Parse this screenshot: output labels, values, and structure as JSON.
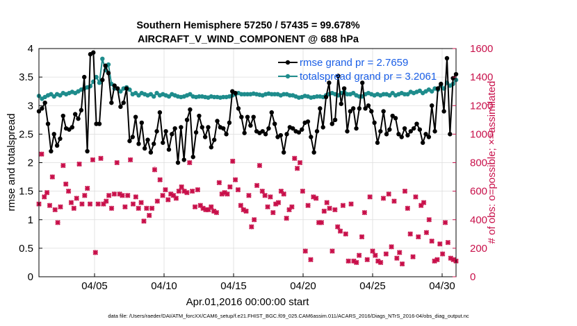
{
  "chart_data": {
    "type": "line",
    "title": "Southern Hemisphere 57250 / 57435 = 99.678%",
    "subtitle": "AIRCRAFT_V_WIND_COMPONENT @ 688 hPa",
    "xlabel": "Apr.01,2016 00:00:00 start",
    "ylabel": "rmse and totalspread",
    "ylabel_right": "# of obs: o=possible; ×=assimilated",
    "footer": "data file: /Users/raeder/DAI/ATM_forcXX/CAM6_setup/f.e21.FHIST_BGC.f09_025.CAM6assim.011/ACARS_2016/Diags_NTrS_2016-04/obs_diag_output.nc",
    "xlim": [
      1.0,
      31.0
    ],
    "ylim": [
      0,
      4
    ],
    "ylim_right": [
      0,
      1600
    ],
    "x_ticks": [
      5,
      10,
      15,
      20,
      25,
      30
    ],
    "x_tick_labels": [
      "04/05",
      "04/10",
      "04/15",
      "04/20",
      "04/25",
      "04/30"
    ],
    "y_ticks": [
      "0",
      "0.5",
      "1",
      "1.5",
      "2",
      "2.5",
      "3",
      "3.5",
      "4"
    ],
    "y_right_ticks": [
      "0",
      "200",
      "400",
      "600",
      "800",
      "1000",
      "1200",
      "1400",
      "1600"
    ],
    "grid": true,
    "legend_position": "top-right",
    "series": [
      {
        "name": "rmse",
        "legend": "rmse grand pr = 2.7659",
        "color": "#000000",
        "axis": "left",
        "values": [
          2.9,
          2.95,
          3.05,
          2.68,
          2.2,
          2.5,
          2.3,
          2.42,
          2.82,
          2.6,
          2.58,
          2.62,
          2.85,
          2.77,
          2.92,
          3.5,
          2.2,
          3.9,
          3.93,
          2.68,
          2.68,
          3.45,
          3.7,
          3.57,
          3.05,
          3.35,
          3.3,
          2.98,
          3.05,
          3.3,
          2.38,
          2.45,
          2.8,
          2.33,
          2.7,
          2.25,
          2.4,
          2.18,
          2.33,
          2.55,
          2.88,
          2.35,
          2.55,
          2.23,
          2.5,
          2.6,
          2.0,
          2.62,
          2.05,
          2.75,
          2.93,
          2.1,
          2.53,
          2.82,
          2.62,
          2.45,
          2.62,
          2.27,
          2.4,
          2.73,
          2.62,
          2.6,
          2.5,
          2.7,
          3.25,
          3.22,
          2.95,
          2.8,
          2.52,
          2.8,
          2.65,
          2.8,
          2.55,
          2.52,
          2.55,
          2.5,
          2.6,
          2.88,
          2.68,
          2.45,
          2.48,
          2.18,
          2.5,
          2.62,
          2.6,
          2.55,
          2.53,
          2.58,
          2.7,
          2.72,
          2.45,
          2.18,
          2.55,
          2.95,
          2.62,
          3.15,
          3.4,
          2.68,
          2.75,
          3.52,
          3.03,
          3.3,
          2.55,
          2.9,
          2.95,
          2.6,
          2.95,
          3.4,
          2.95,
          3.0,
          2.9,
          2.7,
          2.35,
          2.55,
          2.9,
          2.5,
          2.58,
          2.82,
          2.78,
          2.5,
          2.45,
          2.6,
          2.48,
          2.55,
          2.6,
          2.68,
          2.58,
          2.35,
          2.5,
          2.45,
          3.0,
          2.55,
          3.3,
          3.38,
          2.9,
          3.83,
          2.5,
          3.48,
          3.55
        ]
      },
      {
        "name": "totalspread",
        "legend": "totalspread grand pr = 3.2061",
        "color": "#1e8c8c",
        "axis": "left",
        "values": [
          3.17,
          3.12,
          3.15,
          3.18,
          3.2,
          3.16,
          3.2,
          3.18,
          3.22,
          3.2,
          3.22,
          3.24,
          3.22,
          3.25,
          3.28,
          3.3,
          3.32,
          3.34,
          3.42,
          3.5,
          3.4,
          3.82,
          3.62,
          3.72,
          3.38,
          3.3,
          3.3,
          3.25,
          3.3,
          3.32,
          3.28,
          3.2,
          3.22,
          3.18,
          3.22,
          3.2,
          3.18,
          3.2,
          3.16,
          3.22,
          3.18,
          3.2,
          3.18,
          3.16,
          3.2,
          3.18,
          3.16,
          3.15,
          3.16,
          3.18,
          3.2,
          3.16,
          3.15,
          3.16,
          3.16,
          3.15,
          3.14,
          3.16,
          3.15,
          3.15,
          3.14,
          3.15,
          3.15,
          3.16,
          3.18,
          3.2,
          3.22,
          3.2,
          3.2,
          3.2,
          3.2,
          3.21,
          3.2,
          3.19,
          3.18,
          3.2,
          3.21,
          3.2,
          3.2,
          3.2,
          3.18,
          3.2,
          3.2,
          3.18,
          3.18,
          3.16,
          3.14,
          3.15,
          3.17,
          3.16,
          3.14,
          3.15,
          3.16,
          3.16,
          3.15,
          3.18,
          3.2,
          3.22,
          3.2,
          3.18,
          3.22,
          3.24,
          3.2,
          3.2,
          3.22,
          3.18,
          3.16,
          3.16,
          3.2,
          3.22,
          3.2,
          3.18,
          3.2,
          3.18,
          3.2,
          3.2,
          3.18,
          3.22,
          3.18,
          3.2,
          3.22,
          3.2,
          3.2,
          3.24,
          3.22,
          3.24,
          3.26,
          3.22,
          3.25,
          3.28,
          3.25,
          3.3,
          3.28,
          3.35,
          3.3,
          3.4,
          3.35,
          3.38,
          3.45
        ]
      },
      {
        "name": "obs_assimilated",
        "color": "#c8104a",
        "axis": "right",
        "marker": "x",
        "values": [
          510,
          860,
          560,
          590,
          500,
          700,
          470,
          380,
          490,
          780,
          650,
          600,
          520,
          480,
          550,
          790,
          510,
          570,
          620,
          510,
          820,
          170,
          510,
          830,
          510,
          530,
          570,
          480,
          580,
          800,
          580,
          570,
          490,
          570,
          820,
          510,
          560,
          480,
          520,
          390,
          480,
          430,
          480,
          750,
          530,
          680,
          570,
          610,
          540,
          580,
          570,
          550,
          600,
          630,
          600,
          590,
          800,
          600,
          490,
          610,
          500,
          480,
          470,
          470,
          490,
          460,
          450,
          660,
          580,
          590,
          580,
          630,
          810,
          680,
          610,
          500,
          470,
          460,
          570,
          350,
          400,
          640,
          780,
          600,
          570,
          490,
          560,
          450,
          510,
          520,
          600,
          580,
          410,
          470,
          490,
          830,
          760,
          800,
          600,
          180,
          500,
          120,
          560,
          550,
          380,
          380,
          460,
          520,
          480,
          180,
          470,
          350,
          320,
          500,
          300,
          110,
          510,
          110,
          100,
          150,
          280,
          450,
          120,
          560,
          180,
          150,
          110,
          100,
          550,
          160,
          580,
          210,
          530,
          130,
          170,
          90,
          600,
          480,
          300,
          140,
          560,
          280,
          500,
          520,
          310,
          400,
          250,
          110,
          120,
          230,
          160,
          380,
          240,
          130,
          120,
          110
        ]
      },
      {
        "name": "obs_possible",
        "color": "#c8104a",
        "axis": "right",
        "marker": "o",
        "values": [
          510,
          860,
          560,
          590,
          500,
          700,
          470,
          380,
          490,
          780,
          650,
          600,
          520,
          480,
          550,
          790,
          510,
          570,
          620,
          510,
          820,
          170,
          510,
          830,
          510,
          530,
          570,
          480,
          580,
          800,
          580,
          570,
          490,
          570,
          820,
          510,
          560,
          480,
          520,
          390,
          480,
          430,
          480,
          760,
          530,
          680,
          570,
          610,
          540,
          580,
          570,
          550,
          600,
          630,
          600,
          590,
          800,
          600,
          490,
          610,
          500,
          480,
          470,
          470,
          490,
          460,
          450,
          660,
          580,
          590,
          580,
          630,
          810,
          680,
          610,
          500,
          470,
          460,
          570,
          350,
          400,
          640,
          780,
          600,
          570,
          490,
          560,
          450,
          510,
          520,
          600,
          580,
          410,
          470,
          490,
          830,
          760,
          800,
          600,
          180,
          500,
          120,
          560,
          550,
          380,
          380,
          460,
          520,
          480,
          180,
          470,
          350,
          320,
          500,
          300,
          110,
          510,
          110,
          100,
          150,
          280,
          450,
          120,
          560,
          180,
          150,
          110,
          100,
          550,
          160,
          580,
          210,
          530,
          130,
          170,
          90,
          600,
          480,
          300,
          140,
          560,
          280,
          500,
          520,
          310,
          400,
          250,
          110,
          120,
          230,
          160,
          380,
          240,
          130,
          120,
          110
        ]
      }
    ]
  }
}
